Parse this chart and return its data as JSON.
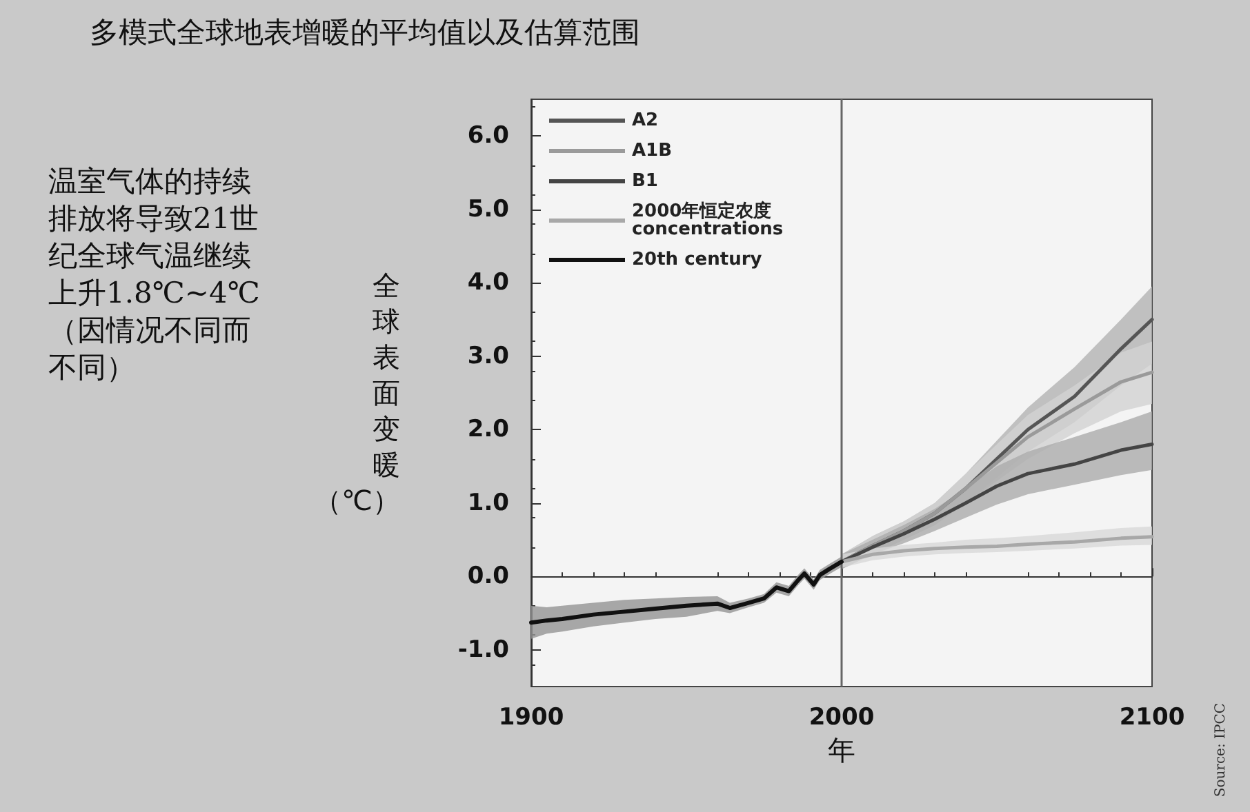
{
  "chart_data": {
    "type": "line",
    "title": "多模式全球地表增暖的平均值以及估算范围",
    "xlabel": "年",
    "ylabel": "全球表面变暖（℃）",
    "annotations": [
      "温室气体的持续排放将导致21世纪全球气温继续上升1.8℃~4℃（因情况不同而不同）",
      "Source: IPCC"
    ],
    "series": [
      {
        "name": "A2",
        "color": "#555555",
        "x": [
          2000,
          2010,
          2020,
          2030,
          2040,
          2050,
          2060,
          2075,
          2090,
          2100
        ],
        "values": [
          0.2,
          0.42,
          0.62,
          0.86,
          1.2,
          1.6,
          2.0,
          2.45,
          3.1,
          3.5
        ],
        "lower": [
          0.1,
          0.3,
          0.5,
          0.7,
          1.0,
          1.35,
          1.7,
          2.1,
          2.6,
          2.9
        ],
        "upper": [
          0.3,
          0.55,
          0.75,
          1.0,
          1.4,
          1.85,
          2.3,
          2.85,
          3.5,
          3.95
        ]
      },
      {
        "name": "A1B",
        "color": "#9a9a9a",
        "x": [
          2000,
          2010,
          2020,
          2030,
          2040,
          2050,
          2060,
          2075,
          2090,
          2100
        ],
        "values": [
          0.2,
          0.42,
          0.62,
          0.86,
          1.2,
          1.55,
          1.9,
          2.28,
          2.65,
          2.78
        ],
        "lower": [
          0.1,
          0.3,
          0.5,
          0.7,
          1.0,
          1.3,
          1.6,
          1.95,
          2.25,
          2.35
        ],
        "upper": [
          0.3,
          0.55,
          0.75,
          1.0,
          1.4,
          1.8,
          2.2,
          2.6,
          3.05,
          3.2
        ]
      },
      {
        "name": "B1",
        "color": "#444444",
        "x": [
          2000,
          2010,
          2020,
          2030,
          2040,
          2050,
          2060,
          2075,
          2090,
          2100
        ],
        "values": [
          0.2,
          0.4,
          0.58,
          0.78,
          1.0,
          1.23,
          1.4,
          1.53,
          1.72,
          1.8
        ],
        "lower": [
          0.1,
          0.3,
          0.45,
          0.62,
          0.8,
          0.98,
          1.12,
          1.25,
          1.38,
          1.45
        ],
        "upper": [
          0.3,
          0.5,
          0.7,
          0.92,
          1.2,
          1.5,
          1.7,
          1.9,
          2.1,
          2.25
        ]
      },
      {
        "name": "2000年恒定农度\nconcentrations",
        "color": "#a8a8a8",
        "x": [
          2000,
          2010,
          2020,
          2030,
          2040,
          2050,
          2060,
          2075,
          2090,
          2100
        ],
        "values": [
          0.2,
          0.3,
          0.35,
          0.38,
          0.4,
          0.41,
          0.44,
          0.47,
          0.52,
          0.54
        ],
        "lower": [
          0.12,
          0.22,
          0.27,
          0.3,
          0.32,
          0.33,
          0.35,
          0.38,
          0.42,
          0.43
        ],
        "upper": [
          0.3,
          0.38,
          0.43,
          0.46,
          0.5,
          0.52,
          0.55,
          0.6,
          0.66,
          0.68
        ]
      },
      {
        "name": "20th century",
        "color": "#111111",
        "x": [
          1900,
          1905,
          1910,
          1920,
          1930,
          1940,
          1950,
          1960,
          1964,
          1970,
          1975,
          1979,
          1983,
          1986,
          1988,
          1991,
          1993,
          1996,
          2000
        ],
        "values": [
          -0.63,
          -0.6,
          -0.58,
          -0.52,
          -0.48,
          -0.44,
          -0.4,
          -0.37,
          -0.43,
          -0.36,
          -0.3,
          -0.15,
          -0.2,
          -0.05,
          0.04,
          -0.11,
          0.02,
          0.1,
          0.2
        ],
        "lower": [
          -0.85,
          -0.78,
          -0.75,
          -0.68,
          -0.63,
          -0.58,
          -0.55,
          -0.47,
          -0.5,
          -0.42,
          -0.36,
          -0.22,
          -0.27,
          -0.12,
          -0.03,
          -0.18,
          -0.05,
          0.03,
          0.13
        ],
        "upper": [
          -0.4,
          -0.42,
          -0.4,
          -0.36,
          -0.32,
          -0.3,
          -0.28,
          -0.27,
          -0.36,
          -0.3,
          -0.24,
          -0.08,
          -0.13,
          0.02,
          0.11,
          -0.04,
          0.09,
          0.17,
          0.27
        ]
      }
    ],
    "xlim": [
      1900,
      2100
    ],
    "xticks": [
      1900,
      2000,
      2100
    ],
    "ylim": [
      -1.5,
      6.5
    ],
    "yticks": [
      {
        "value": -1,
        "label": "-1.0"
      },
      {
        "value": 0,
        "label": "0.0"
      },
      {
        "value": 1,
        "label": "1.0"
      },
      {
        "value": 2,
        "label": "2.0"
      },
      {
        "value": 3,
        "label": "3.0"
      },
      {
        "value": 4,
        "label": "4.0"
      },
      {
        "value": 5,
        "label": "5.0"
      },
      {
        "value": 6,
        "label": "6.0"
      }
    ],
    "ref_lines": [
      {
        "axis": "x",
        "value": 2000,
        "color": "#666666"
      }
    ],
    "legend": "top left",
    "grid": false,
    "marker": "none",
    "line_style": "solid"
  }
}
